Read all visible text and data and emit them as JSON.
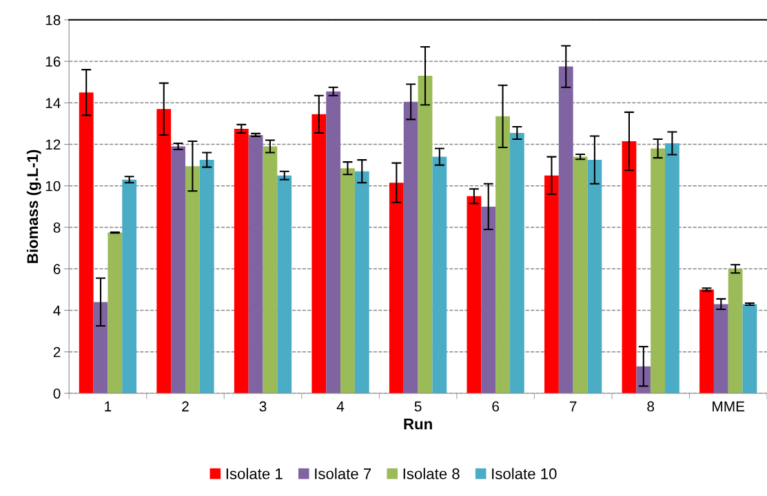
{
  "chart_data": {
    "type": "bar",
    "xlabel": "Run",
    "ylabel": "Biomass (g.L-1)",
    "categories": [
      "1",
      "2",
      "3",
      "4",
      "5",
      "6",
      "7",
      "8",
      "MME"
    ],
    "series": [
      {
        "name": "Isolate 1",
        "color": "#ff0000",
        "values": [
          14.5,
          13.7,
          12.75,
          13.45,
          10.15,
          9.5,
          10.5,
          12.15,
          5.0
        ],
        "errors": [
          1.1,
          1.25,
          0.2,
          0.9,
          0.95,
          0.35,
          0.9,
          1.4,
          0.07
        ]
      },
      {
        "name": "Isolate 7",
        "color": "#8064a2",
        "values": [
          4.4,
          11.9,
          12.45,
          14.55,
          14.05,
          9.0,
          15.75,
          1.3,
          4.3
        ],
        "errors": [
          1.15,
          0.15,
          0.07,
          0.2,
          0.85,
          1.1,
          1.0,
          0.95,
          0.25
        ]
      },
      {
        "name": "Isolate 8",
        "color": "#9bbb59",
        "values": [
          7.75,
          10.95,
          11.9,
          10.85,
          15.3,
          13.35,
          11.4,
          11.8,
          6.0
        ],
        "errors": [
          0.02,
          1.2,
          0.3,
          0.3,
          1.4,
          1.5,
          0.12,
          0.45,
          0.2
        ]
      },
      {
        "name": "Isolate 10",
        "color": "#4bacc6",
        "values": [
          10.3,
          11.25,
          10.5,
          10.7,
          11.4,
          12.55,
          11.25,
          12.05,
          4.3
        ],
        "errors": [
          0.15,
          0.35,
          0.2,
          0.55,
          0.4,
          0.3,
          1.15,
          0.55,
          0.05
        ]
      }
    ],
    "ylim": [
      0,
      18
    ],
    "yticks": [
      0,
      2,
      4,
      6,
      8,
      10,
      12,
      14,
      16,
      18
    ],
    "grid": "y",
    "legend": "bottom"
  }
}
